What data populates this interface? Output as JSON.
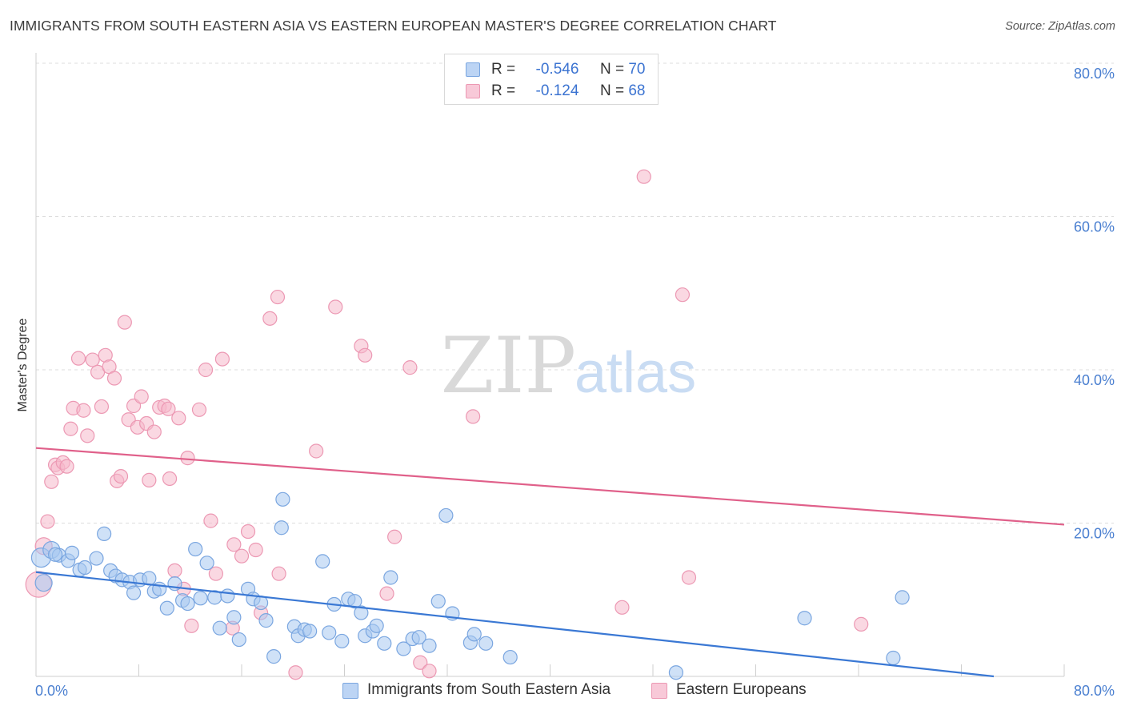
{
  "header": {
    "title": "IMMIGRANTS FROM SOUTH EASTERN ASIA VS EASTERN EUROPEAN MASTER'S DEGREE CORRELATION CHART",
    "source": "Source: ZipAtlas.com"
  },
  "legend": {
    "r_label": "R =",
    "n_label": "N =",
    "series1": {
      "r": "-0.546",
      "n": "70"
    },
    "series2": {
      "r": "-0.124",
      "n": "68"
    }
  },
  "watermark": {
    "zip": "ZIP",
    "atlas": "atlas"
  },
  "colors": {
    "series1_fill": "#a8c8f0",
    "series1_stroke": "#7aa6e0",
    "series1_line": "#3a78d4",
    "series2_fill": "#f5b8cb",
    "series2_stroke": "#ec98b3",
    "series2_line": "#e0608a",
    "tick_text": "#4a7fd0",
    "grid": "#dddddd"
  },
  "chart_data": {
    "type": "scatter",
    "title": "IMMIGRANTS FROM SOUTH EASTERN ASIA VS EASTERN EUROPEAN MASTER'S DEGREE CORRELATION CHART",
    "xlabel": "",
    "ylabel": "Master's Degree",
    "xlim": [
      0,
      80
    ],
    "ylim": [
      0,
      80
    ],
    "x_tick_labels": [
      "0.0%",
      "80.0%"
    ],
    "y_ticks": [
      {
        "value": 20,
        "label": "20.0%"
      },
      {
        "value": 40,
        "label": "40.0%"
      },
      {
        "value": 60,
        "label": "60.0%"
      },
      {
        "value": 80,
        "label": "80.0%"
      }
    ],
    "grid": true,
    "legend_position": "top-center",
    "series": [
      {
        "name": "Immigrants from South Eastern Asia",
        "r": -0.546,
        "n": 70,
        "trend": {
          "x0": 0,
          "y0": 13.6,
          "x1": 80,
          "y1": -1.0
        },
        "points": [
          [
            0.4,
            15.5,
            3
          ],
          [
            1.2,
            16.5,
            2
          ],
          [
            1.8,
            15.8,
            1
          ],
          [
            2.5,
            15.1,
            1
          ],
          [
            2.8,
            16.1,
            1
          ],
          [
            3.4,
            13.9,
            1
          ],
          [
            3.8,
            14.2,
            1
          ],
          [
            4.7,
            15.4,
            1
          ],
          [
            5.3,
            18.6,
            1
          ],
          [
            5.8,
            13.8,
            1
          ],
          [
            6.2,
            13.1,
            1
          ],
          [
            6.7,
            12.6,
            1
          ],
          [
            7.3,
            12.3,
            1
          ],
          [
            7.6,
            10.9,
            1
          ],
          [
            8.1,
            12.6,
            1
          ],
          [
            8.8,
            12.8,
            1
          ],
          [
            9.2,
            11.1,
            1
          ],
          [
            9.6,
            11.4,
            1
          ],
          [
            10.2,
            8.9,
            1
          ],
          [
            10.8,
            12.1,
            1
          ],
          [
            11.4,
            9.9,
            1
          ],
          [
            11.8,
            9.5,
            1
          ],
          [
            12.4,
            16.6,
            1
          ],
          [
            12.8,
            10.2,
            1
          ],
          [
            13.3,
            14.8,
            1
          ],
          [
            13.9,
            10.3,
            1
          ],
          [
            14.3,
            6.3,
            1
          ],
          [
            14.9,
            10.5,
            1
          ],
          [
            15.4,
            7.7,
            1
          ],
          [
            15.8,
            4.8,
            1
          ],
          [
            16.5,
            11.4,
            1
          ],
          [
            16.9,
            10.1,
            1
          ],
          [
            17.5,
            9.6,
            1
          ],
          [
            17.9,
            7.3,
            1
          ],
          [
            18.5,
            2.6,
            1
          ],
          [
            19.1,
            19.4,
            1
          ],
          [
            19.2,
            23.1,
            1
          ],
          [
            20.1,
            6.5,
            1
          ],
          [
            20.4,
            5.3,
            1
          ],
          [
            20.9,
            6.1,
            1
          ],
          [
            21.3,
            5.9,
            1
          ],
          [
            22.3,
            15.0,
            1
          ],
          [
            22.8,
            5.7,
            1
          ],
          [
            23.2,
            9.4,
            1
          ],
          [
            23.8,
            4.6,
            1
          ],
          [
            24.3,
            10.1,
            1
          ],
          [
            24.8,
            9.8,
            1
          ],
          [
            25.3,
            8.3,
            1
          ],
          [
            25.6,
            5.3,
            1
          ],
          [
            26.2,
            5.9,
            1
          ],
          [
            26.5,
            6.6,
            1
          ],
          [
            27.1,
            4.3,
            1
          ],
          [
            27.6,
            12.9,
            1
          ],
          [
            28.6,
            3.6,
            1
          ],
          [
            29.3,
            4.9,
            1
          ],
          [
            29.8,
            5.1,
            1
          ],
          [
            30.6,
            4.0,
            1
          ],
          [
            31.3,
            9.8,
            1
          ],
          [
            31.9,
            21.0,
            1
          ],
          [
            32.4,
            8.2,
            1
          ],
          [
            33.8,
            4.4,
            1
          ],
          [
            34.1,
            5.5,
            1
          ],
          [
            35.0,
            4.3,
            1
          ],
          [
            36.9,
            2.5,
            1
          ],
          [
            49.8,
            0.5,
            1
          ],
          [
            59.8,
            7.6,
            1
          ],
          [
            66.7,
            2.4,
            1
          ],
          [
            67.4,
            10.3,
            1
          ],
          [
            0.6,
            12.2,
            2
          ],
          [
            1.5,
            15.9,
            1
          ]
        ]
      },
      {
        "name": "Eastern Europeans",
        "r": -0.124,
        "n": 68,
        "trend": {
          "x0": 0,
          "y0": 29.8,
          "x1": 80,
          "y1": 19.8
        },
        "points": [
          [
            0.2,
            12.0,
            4
          ],
          [
            0.6,
            17.0,
            2
          ],
          [
            0.9,
            20.2,
            1
          ],
          [
            1.2,
            25.4,
            1
          ],
          [
            1.5,
            27.6,
            1
          ],
          [
            1.7,
            27.2,
            1
          ],
          [
            2.1,
            27.9,
            1
          ],
          [
            2.4,
            27.4,
            1
          ],
          [
            2.7,
            32.3,
            1
          ],
          [
            2.9,
            35.0,
            1
          ],
          [
            3.3,
            41.5,
            1
          ],
          [
            3.7,
            34.7,
            1
          ],
          [
            4.0,
            31.4,
            1
          ],
          [
            4.4,
            41.3,
            1
          ],
          [
            4.8,
            39.7,
            1
          ],
          [
            5.1,
            35.2,
            1
          ],
          [
            5.4,
            41.9,
            1
          ],
          [
            5.7,
            40.4,
            1
          ],
          [
            6.1,
            38.9,
            1
          ],
          [
            6.3,
            25.5,
            1
          ],
          [
            6.6,
            26.1,
            1
          ],
          [
            6.9,
            46.2,
            1
          ],
          [
            7.2,
            33.5,
            1
          ],
          [
            7.6,
            35.3,
            1
          ],
          [
            7.9,
            32.5,
            1
          ],
          [
            8.2,
            36.5,
            1
          ],
          [
            8.6,
            33.0,
            1
          ],
          [
            8.8,
            25.6,
            1
          ],
          [
            9.2,
            31.9,
            1
          ],
          [
            9.6,
            35.1,
            1
          ],
          [
            10.0,
            35.3,
            1
          ],
          [
            10.4,
            25.8,
            1
          ],
          [
            10.8,
            13.8,
            1
          ],
          [
            11.1,
            33.7,
            1
          ],
          [
            11.5,
            11.4,
            1
          ],
          [
            11.8,
            28.5,
            1
          ],
          [
            12.1,
            6.6,
            1
          ],
          [
            12.7,
            34.8,
            1
          ],
          [
            13.2,
            40.0,
            1
          ],
          [
            13.6,
            20.3,
            1
          ],
          [
            14.0,
            13.4,
            1
          ],
          [
            14.5,
            41.4,
            1
          ],
          [
            15.3,
            6.3,
            1
          ],
          [
            16.0,
            15.7,
            1
          ],
          [
            16.5,
            18.9,
            1
          ],
          [
            17.1,
            16.5,
            1
          ],
          [
            17.5,
            8.3,
            1
          ],
          [
            18.2,
            46.7,
            1
          ],
          [
            18.9,
            13.4,
            1
          ],
          [
            18.8,
            49.5,
            1
          ],
          [
            20.2,
            0.5,
            1
          ],
          [
            21.8,
            29.4,
            1
          ],
          [
            23.3,
            48.2,
            1
          ],
          [
            25.3,
            43.1,
            1
          ],
          [
            25.6,
            41.9,
            1
          ],
          [
            27.3,
            10.8,
            1
          ],
          [
            27.9,
            18.2,
            1
          ],
          [
            29.1,
            40.3,
            1
          ],
          [
            29.9,
            1.8,
            1
          ],
          [
            30.6,
            0.7,
            1
          ],
          [
            34.0,
            33.9,
            1
          ],
          [
            45.6,
            9.0,
            1
          ],
          [
            47.3,
            65.2,
            1
          ],
          [
            50.3,
            49.8,
            1
          ],
          [
            50.8,
            12.9,
            1
          ],
          [
            64.2,
            6.8,
            1
          ],
          [
            10.3,
            34.9,
            1
          ],
          [
            15.4,
            17.2,
            1
          ]
        ]
      }
    ]
  }
}
